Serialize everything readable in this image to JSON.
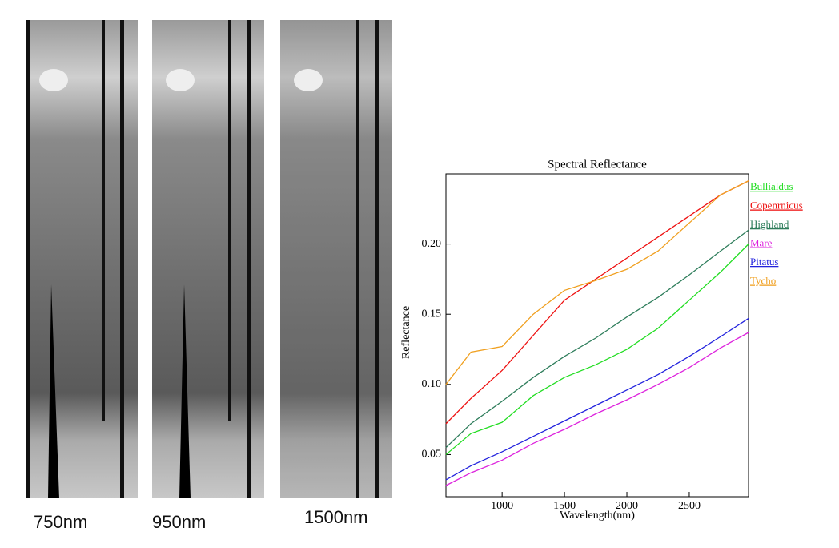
{
  "image_labels": [
    "750nm",
    "950nm",
    "1500nm"
  ],
  "chart_data": {
    "type": "line",
    "title": "Spectral Reflectance",
    "x_label": "Wavelength(nm)",
    "y_label": "Reflectance",
    "x": [
      550,
      750,
      1000,
      1250,
      1500,
      1750,
      2000,
      2250,
      2500,
      2750,
      2975
    ],
    "series": [
      {
        "name": "Bullialdus",
        "color": "#22dd22",
        "values": [
          0.05,
          0.065,
          0.073,
          0.092,
          0.105,
          0.114,
          0.125,
          0.14,
          0.16,
          0.18,
          0.2
        ]
      },
      {
        "name": "Copenrnicus",
        "color": "#ee1111",
        "values": [
          0.072,
          0.09,
          0.11,
          0.135,
          0.16,
          0.175,
          0.19,
          0.205,
          0.22,
          0.235,
          0.245
        ]
      },
      {
        "name": "Highland",
        "color": "#2e7d5b",
        "values": [
          0.055,
          0.072,
          0.088,
          0.105,
          0.12,
          0.133,
          0.148,
          0.162,
          0.178,
          0.195,
          0.21
        ]
      },
      {
        "name": "Mare",
        "color": "#dd22dd",
        "values": [
          0.028,
          0.037,
          0.046,
          0.058,
          0.068,
          0.079,
          0.089,
          0.1,
          0.112,
          0.126,
          0.137
        ]
      },
      {
        "name": "Pitatus",
        "color": "#2222dd",
        "values": [
          0.032,
          0.042,
          0.052,
          0.063,
          0.074,
          0.085,
          0.096,
          0.107,
          0.12,
          0.134,
          0.147
        ]
      },
      {
        "name": "Tycho",
        "color": "#f0a020",
        "values": [
          0.1,
          0.123,
          0.127,
          0.15,
          0.167,
          0.174,
          0.182,
          0.195,
          0.215,
          0.235,
          0.245
        ]
      }
    ],
    "xlim": [
      550,
      2975
    ],
    "ylim": [
      0.02,
      0.25
    ],
    "xticks": [
      1000,
      1500,
      2000,
      2500
    ],
    "yticks": [
      0.05,
      {
        "value": 0.1,
        "label": "0.10"
      },
      0.15,
      {
        "value": 0.2,
        "label": "0.20"
      }
    ],
    "legend": "right"
  }
}
